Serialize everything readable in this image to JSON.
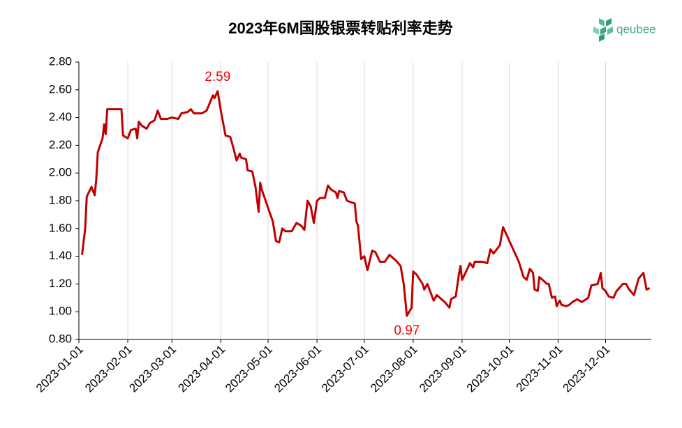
{
  "chart_data": {
    "type": "line",
    "title": "2023年6M国股银票转贴利率走势",
    "logo": "qeubee",
    "x": [
      "2023-01-03",
      "2023-01-05",
      "2023-01-06",
      "2023-01-09",
      "2023-01-11",
      "2023-01-12",
      "2023-01-13",
      "2023-01-16",
      "2023-01-17",
      "2023-01-18",
      "2023-01-19",
      "2023-01-28",
      "2023-01-29",
      "2023-02-01",
      "2023-02-03",
      "2023-02-06",
      "2023-02-07",
      "2023-02-08",
      "2023-02-10",
      "2023-02-13",
      "2023-02-15",
      "2023-02-18",
      "2023-02-20",
      "2023-02-22",
      "2023-02-26",
      "2023-03-01",
      "2023-03-05",
      "2023-03-07",
      "2023-03-11",
      "2023-03-13",
      "2023-03-15",
      "2023-03-20",
      "2023-03-23",
      "2023-03-27",
      "2023-03-28",
      "2023-03-30",
      "2023-04-01",
      "2023-04-04",
      "2023-04-07",
      "2023-04-09",
      "2023-04-11",
      "2023-04-13",
      "2023-04-14",
      "2023-04-17",
      "2023-04-18",
      "2023-04-21",
      "2023-04-23",
      "2023-04-25",
      "2023-04-26",
      "2023-04-27",
      "2023-05-04",
      "2023-05-06",
      "2023-05-08",
      "2023-05-10",
      "2023-05-12",
      "2023-05-16",
      "2023-05-19",
      "2023-05-22",
      "2023-05-24",
      "2023-05-26",
      "2023-05-28",
      "2023-05-30",
      "2023-06-01",
      "2023-06-03",
      "2023-06-06",
      "2023-06-08",
      "2023-06-10",
      "2023-06-13",
      "2023-06-14",
      "2023-06-15",
      "2023-06-18",
      "2023-06-20",
      "2023-06-25",
      "2023-06-26",
      "2023-06-27",
      "2023-06-29",
      "2023-07-01",
      "2023-07-03",
      "2023-07-06",
      "2023-07-08",
      "2023-07-11",
      "2023-07-14",
      "2023-07-17",
      "2023-07-21",
      "2023-07-24",
      "2023-07-26",
      "2023-07-28",
      "2023-07-31",
      "2023-08-01",
      "2023-08-03",
      "2023-08-07",
      "2023-08-08",
      "2023-08-10",
      "2023-08-14",
      "2023-08-16",
      "2023-08-21",
      "2023-08-24",
      "2023-08-25",
      "2023-08-28",
      "2023-08-30",
      "2023-08-31",
      "2023-09-01",
      "2023-09-04",
      "2023-09-06",
      "2023-09-08",
      "2023-09-09",
      "2023-09-14",
      "2023-09-17",
      "2023-09-19",
      "2023-09-21",
      "2023-09-25",
      "2023-09-27",
      "2023-10-07",
      "2023-10-10",
      "2023-10-12",
      "2023-10-14",
      "2023-10-16",
      "2023-10-17",
      "2023-10-19",
      "2023-10-20",
      "2023-10-25",
      "2023-10-26",
      "2023-10-28",
      "2023-10-30",
      "2023-10-31",
      "2023-11-02",
      "2023-11-03",
      "2023-11-06",
      "2023-11-08",
      "2023-11-10",
      "2023-11-13",
      "2023-11-16",
      "2023-11-20",
      "2023-11-22",
      "2023-11-26",
      "2023-11-28",
      "2023-11-29",
      "2023-12-01",
      "2023-12-03",
      "2023-12-06",
      "2023-12-08",
      "2023-12-12",
      "2023-12-14",
      "2023-12-16",
      "2023-12-19",
      "2023-12-22",
      "2023-12-25",
      "2023-12-27",
      "2023-12-29"
    ],
    "series": [
      {
        "name": "6M国股银票转贴利率",
        "color": "#c00000",
        "values": [
          1.41,
          1.6,
          1.83,
          1.9,
          1.84,
          1.95,
          2.15,
          2.25,
          2.35,
          2.28,
          2.46,
          2.46,
          2.27,
          2.25,
          2.31,
          2.32,
          2.25,
          2.37,
          2.34,
          2.32,
          2.36,
          2.38,
          2.45,
          2.39,
          2.39,
          2.4,
          2.39,
          2.43,
          2.44,
          2.46,
          2.43,
          2.43,
          2.45,
          2.56,
          2.54,
          2.59,
          2.45,
          2.27,
          2.26,
          2.18,
          2.09,
          2.14,
          2.11,
          2.1,
          2.02,
          2.01,
          1.9,
          1.72,
          1.93,
          1.88,
          1.65,
          1.51,
          1.5,
          1.6,
          1.58,
          1.58,
          1.64,
          1.62,
          1.59,
          1.8,
          1.76,
          1.64,
          1.8,
          1.82,
          1.82,
          1.91,
          1.88,
          1.86,
          1.82,
          1.87,
          1.86,
          1.8,
          1.78,
          1.65,
          1.62,
          1.38,
          1.4,
          1.3,
          1.44,
          1.43,
          1.36,
          1.36,
          1.41,
          1.37,
          1.33,
          1.2,
          0.97,
          1.03,
          1.29,
          1.27,
          1.2,
          1.16,
          1.2,
          1.08,
          1.12,
          1.07,
          1.03,
          1.09,
          1.11,
          1.27,
          1.33,
          1.23,
          1.3,
          1.35,
          1.32,
          1.36,
          1.36,
          1.35,
          1.45,
          1.42,
          1.48,
          1.61,
          1.36,
          1.25,
          1.23,
          1.31,
          1.28,
          1.16,
          1.15,
          1.25,
          1.2,
          1.2,
          1.1,
          1.11,
          1.04,
          1.08,
          1.05,
          1.04,
          1.05,
          1.07,
          1.09,
          1.07,
          1.1,
          1.19,
          1.2,
          1.28,
          1.17,
          1.15,
          1.11,
          1.1,
          1.15,
          1.2,
          1.2,
          1.16,
          1.12,
          1.24,
          1.28,
          1.16,
          1.17
        ]
      }
    ],
    "annotations": [
      {
        "text": "2.59",
        "x": "2023-03-30",
        "y": 2.59,
        "color": "#ff0000"
      },
      {
        "text": "0.97",
        "x": "2023-07-28",
        "y": 0.97,
        "color": "#ff0000"
      }
    ],
    "xlim": [
      "2023-01-01",
      "2023-12-30"
    ],
    "xticks": [
      "2023-01-01",
      "2023-02-01",
      "2023-03-01",
      "2023-04-01",
      "2023-05-01",
      "2023-06-01",
      "2023-07-01",
      "2023-08-01",
      "2023-09-01",
      "2023-10-01",
      "2023-11-01",
      "2023-12-01"
    ],
    "ylim": [
      0.8,
      2.8
    ],
    "yticks": [
      {
        "value": 0.8,
        "label": "0.80"
      },
      {
        "value": 1.0,
        "label": "1.00"
      },
      {
        "value": 1.2,
        "label": "1.20"
      },
      {
        "value": 1.4,
        "label": "1.40"
      },
      {
        "value": 1.6,
        "label": "1.60"
      },
      {
        "value": 1.8,
        "label": "1.80"
      },
      {
        "value": 2.0,
        "label": "2.00"
      },
      {
        "value": 2.2,
        "label": "2.20"
      },
      {
        "value": 2.4,
        "label": "2.40"
      },
      {
        "value": 2.6,
        "label": "2.60"
      },
      {
        "value": 2.8,
        "label": "2.80"
      }
    ],
    "grid": "x"
  }
}
